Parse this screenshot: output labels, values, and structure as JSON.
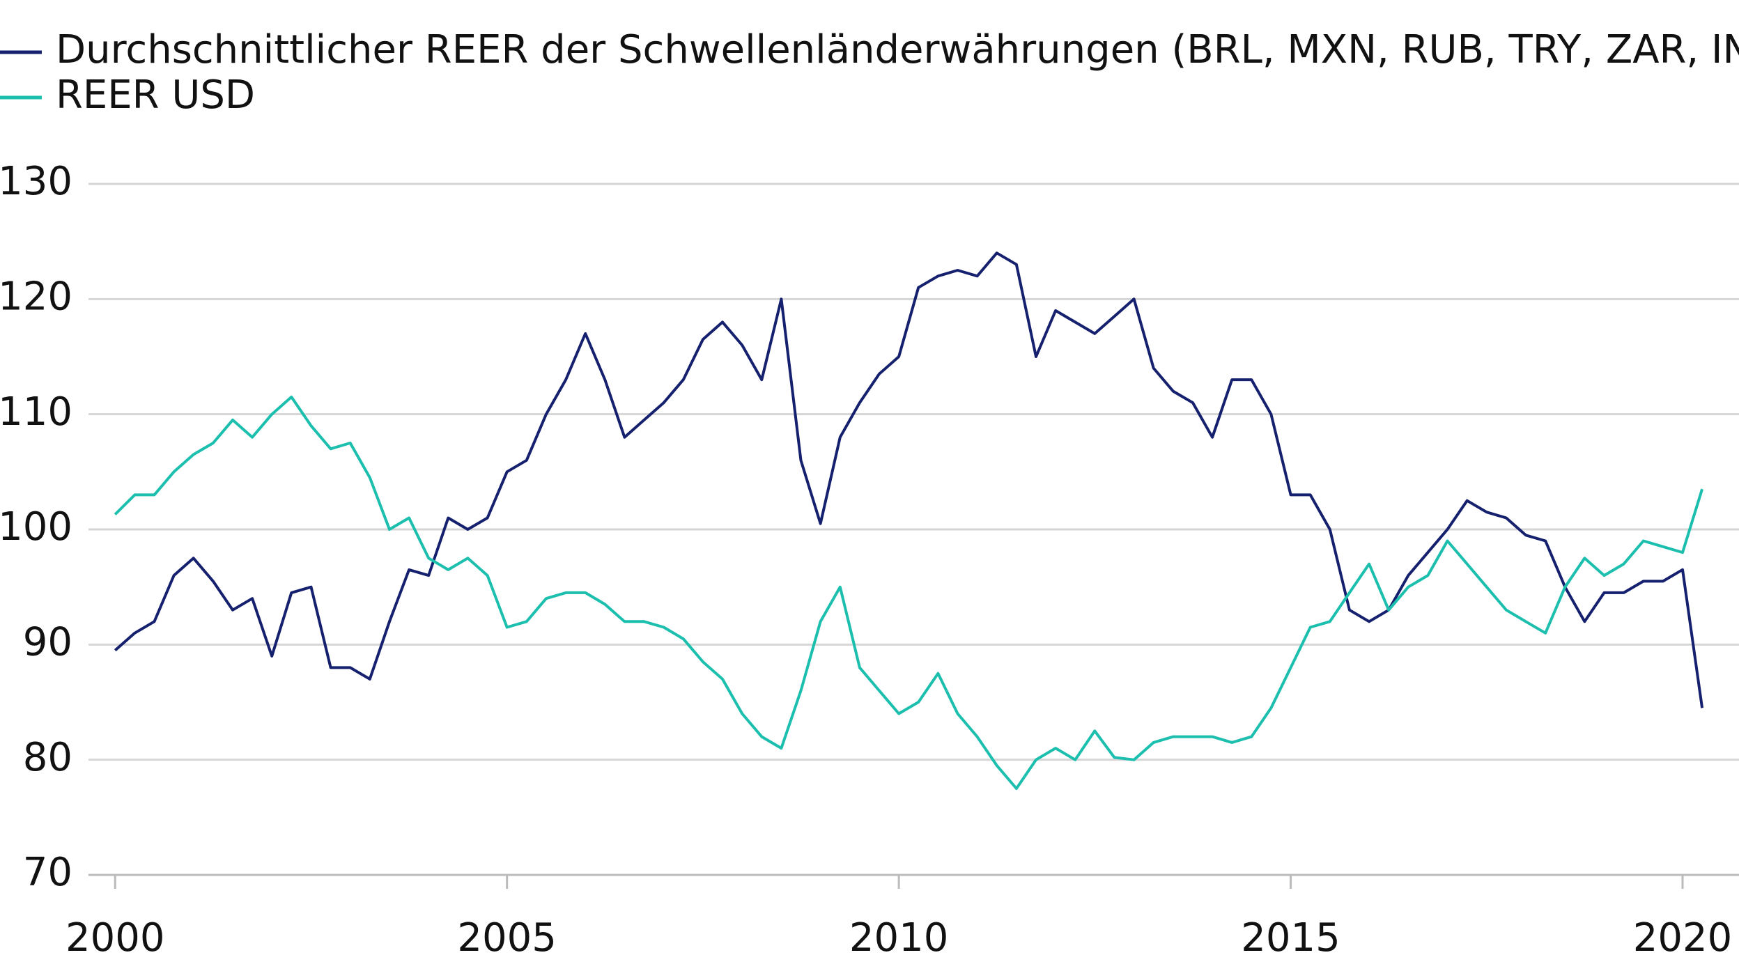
{
  "chart_data": {
    "type": "line",
    "x": [
      2000,
      2000.25,
      2000.5,
      2000.75,
      2001,
      2001.25,
      2001.5,
      2001.75,
      2002,
      2002.25,
      2002.5,
      2002.75,
      2003,
      2003.25,
      2003.5,
      2003.75,
      2004,
      2004.25,
      2004.5,
      2004.75,
      2005,
      2005.25,
      2005.5,
      2005.75,
      2006,
      2006.25,
      2006.5,
      2006.75,
      2007,
      2007.25,
      2007.5,
      2007.75,
      2008,
      2008.25,
      2008.5,
      2008.75,
      2009,
      2009.25,
      2009.5,
      2009.75,
      2010,
      2010.25,
      2010.5,
      2010.75,
      2011,
      2011.25,
      2011.5,
      2011.75,
      2012,
      2012.25,
      2012.5,
      2012.75,
      2013,
      2013.25,
      2013.5,
      2013.75,
      2014,
      2014.25,
      2014.5,
      2014.75,
      2015,
      2015.25,
      2015.5,
      2015.75,
      2016,
      2016.25,
      2016.5,
      2016.75,
      2017,
      2017.25,
      2017.5,
      2017.75,
      2018,
      2018.25,
      2018.5,
      2018.75,
      2019,
      2019.25,
      2019.5,
      2019.75,
      2020,
      2020.25
    ],
    "series": [
      {
        "name": "Durchschnittlicher REER der Schwellenländerwährungen (BRL, MXN, RUB, TRY, ZAR, INR, IDR)",
        "color": "#15206e",
        "values": [
          89.5,
          91,
          92,
          96,
          97.5,
          95.5,
          93,
          94,
          89,
          94.5,
          95,
          88,
          88,
          87,
          92,
          96.5,
          96,
          101,
          100,
          101,
          105,
          106,
          110,
          113,
          117,
          113,
          108,
          109.5,
          111,
          113,
          116.5,
          118,
          116,
          113,
          120,
          106,
          100.5,
          108,
          111,
          113.5,
          115,
          121,
          122,
          122.5,
          122,
          124,
          123,
          115,
          119,
          118,
          117,
          118.5,
          120,
          114,
          112,
          111,
          108,
          113,
          113,
          110,
          103,
          103,
          100,
          93,
          92,
          93,
          96,
          98,
          100,
          102.5,
          101.5,
          101,
          99.5,
          99,
          95,
          92,
          94.5,
          94.5,
          95.5,
          95.5,
          96.5,
          84.5
        ]
      },
      {
        "name": "REER USD",
        "color": "#1cbfad",
        "values": [
          101.3,
          103,
          103,
          105,
          106.5,
          107.5,
          109.5,
          108,
          110,
          111.5,
          109,
          107,
          107.5,
          104.5,
          100,
          101,
          97.5,
          96.5,
          97.5,
          96,
          91.5,
          92,
          94,
          94.5,
          94.5,
          93.5,
          92,
          92,
          91.5,
          90.5,
          88.5,
          87,
          84,
          82,
          81,
          86,
          92,
          95,
          88,
          86,
          84,
          85,
          87.5,
          84,
          82,
          79.5,
          77.5,
          80,
          81,
          80,
          82.5,
          80.2,
          80,
          81.5,
          82,
          82,
          82,
          81.5,
          82,
          84.5,
          88,
          91.5,
          92,
          94.5,
          97,
          93,
          95,
          96,
          99,
          97,
          95,
          93,
          92,
          91,
          95,
          97.5,
          96,
          97,
          99,
          98.5,
          98,
          103.5
        ]
      }
    ],
    "xlim": [
      1999.66,
      2020.72
    ],
    "xticks": [
      2000,
      2005,
      2010,
      2015,
      2020
    ],
    "ylim": [
      70,
      130
    ],
    "yticks": [
      70,
      80,
      90,
      100,
      110,
      120,
      130
    ],
    "grid": true,
    "legend": "top-left"
  }
}
